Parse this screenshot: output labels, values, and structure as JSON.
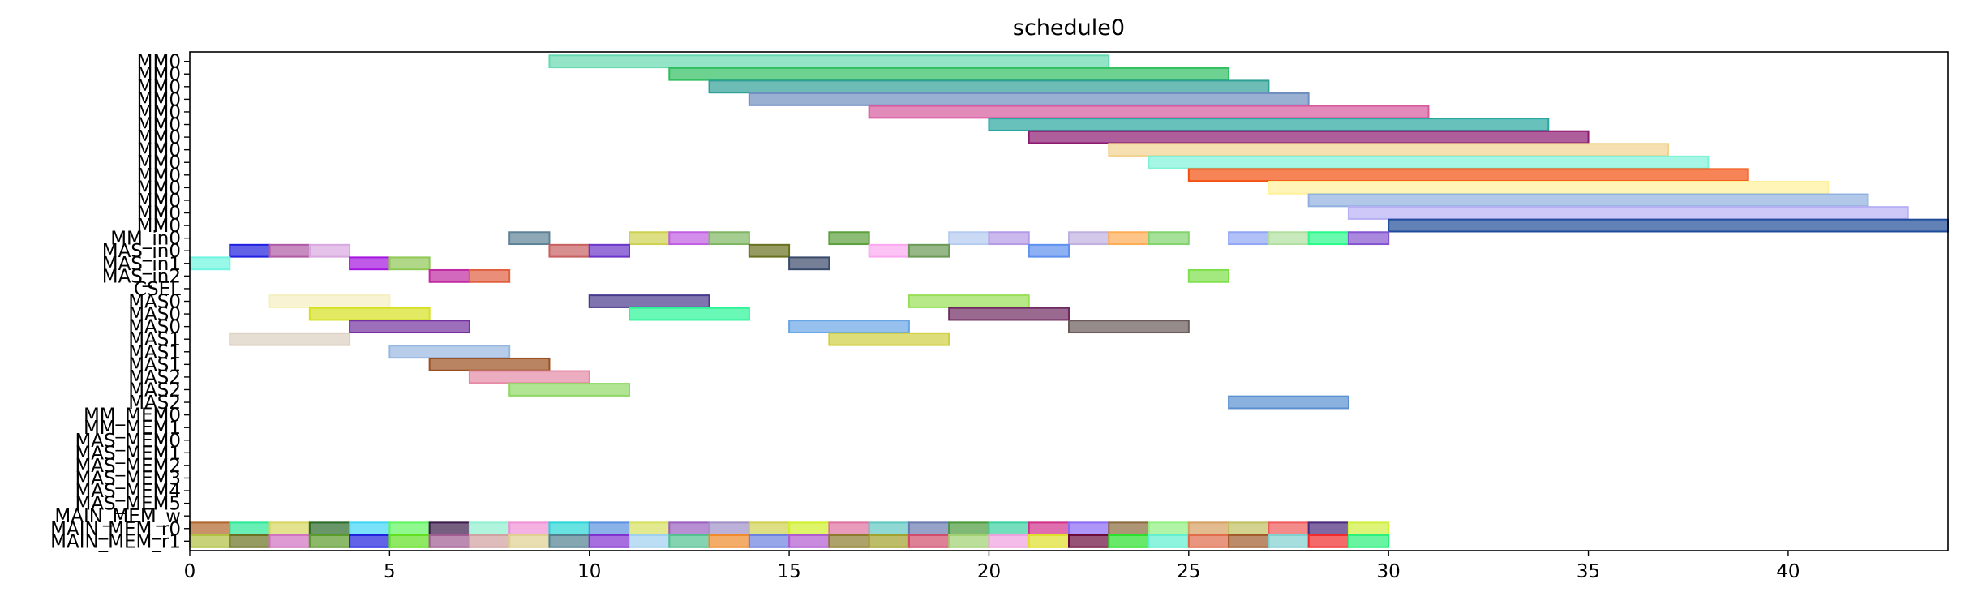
{
  "chart_data": {
    "type": "gantt",
    "title": "schedule0",
    "xlim": [
      0,
      44
    ],
    "x_ticks": [
      0,
      5,
      10,
      15,
      20,
      25,
      30,
      35,
      40
    ],
    "grid": false,
    "rows": [
      "MM0",
      "MM0",
      "MM0",
      "MM0",
      "MM0",
      "MM0",
      "MM0",
      "MM0",
      "MM0",
      "MM0",
      "MM0",
      "MM0",
      "MM0",
      "MM0",
      "MM_in0",
      "MAS_in0",
      "MAS_in1",
      "MAS_in2",
      "CSEL",
      "MAS0",
      "MAS0",
      "MAS0",
      "MAS1",
      "MAS1",
      "MAS1",
      "MAS2",
      "MAS2",
      "MAS2",
      "MM_MEM0",
      "MM_MEM1",
      "MAS_MEM0",
      "MAS_MEM1",
      "MAS_MEM2",
      "MAS_MEM3",
      "MAS_MEM4",
      "MAS_MEM5",
      "MAIN_MEM_w",
      "MAIN_MEM_r0",
      "MAIN_MEM_r1"
    ],
    "tasks": [
      {
        "row": 0,
        "start": 9,
        "end": 23,
        "color": "#66d9b0",
        "alpha": 0.7
      },
      {
        "row": 1,
        "start": 12,
        "end": 26,
        "color": "#2fbf5f",
        "alpha": 0.7
      },
      {
        "row": 2,
        "start": 13,
        "end": 27,
        "color": "#2f9f95",
        "alpha": 0.7
      },
      {
        "row": 3,
        "start": 14,
        "end": 28,
        "color": "#6e8fc0",
        "alpha": 0.7
      },
      {
        "row": 4,
        "start": 17,
        "end": 31,
        "color": "#d65a9e",
        "alpha": 0.7
      },
      {
        "row": 5,
        "start": 20,
        "end": 34,
        "color": "#2aa6a0",
        "alpha": 0.7
      },
      {
        "row": 6,
        "start": 21,
        "end": 35,
        "color": "#8c1a70",
        "alpha": 0.7
      },
      {
        "row": 7,
        "start": 23,
        "end": 37,
        "color": "#f2d28f",
        "alpha": 0.7
      },
      {
        "row": 8,
        "start": 24,
        "end": 38,
        "color": "#7ff2d8",
        "alpha": 0.7
      },
      {
        "row": 9,
        "start": 25,
        "end": 39,
        "color": "#f2500f",
        "alpha": 0.7
      },
      {
        "row": 10,
        "start": 27,
        "end": 41,
        "color": "#fff19a",
        "alpha": 0.7
      },
      {
        "row": 11,
        "start": 28,
        "end": 42,
        "color": "#90b0e0",
        "alpha": 0.7
      },
      {
        "row": 12,
        "start": 29,
        "end": 43,
        "color": "#b8b0f5",
        "alpha": 0.7
      },
      {
        "row": 13,
        "start": 30,
        "end": 44,
        "color": "#1f4c99",
        "alpha": 0.7
      },
      {
        "row": 14,
        "start": 8,
        "end": 9,
        "color": "#5f8396",
        "alpha": 0.7
      },
      {
        "row": 14,
        "start": 11,
        "end": 12,
        "color": "#cdd150",
        "alpha": 0.7
      },
      {
        "row": 14,
        "start": 12,
        "end": 13,
        "color": "#c15ee3",
        "alpha": 0.7
      },
      {
        "row": 14,
        "start": 13,
        "end": 14,
        "color": "#7fb663",
        "alpha": 0.7
      },
      {
        "row": 14,
        "start": 16,
        "end": 17,
        "color": "#5ba03c",
        "alpha": 0.7
      },
      {
        "row": 14,
        "start": 19,
        "end": 20,
        "color": "#b5cbf0",
        "alpha": 0.7
      },
      {
        "row": 14,
        "start": 20,
        "end": 21,
        "color": "#b59be6",
        "alpha": 0.7
      },
      {
        "row": 14,
        "start": 22,
        "end": 23,
        "color": "#c0b0e0",
        "alpha": 0.7
      },
      {
        "row": 14,
        "start": 23,
        "end": 24,
        "color": "#ffad55",
        "alpha": 0.7
      },
      {
        "row": 14,
        "start": 24,
        "end": 25,
        "color": "#82d36e",
        "alpha": 0.7
      },
      {
        "row": 14,
        "start": 26,
        "end": 27,
        "color": "#92a5f5",
        "alpha": 0.7
      },
      {
        "row": 14,
        "start": 27,
        "end": 28,
        "color": "#b0dfa0",
        "alpha": 0.7
      },
      {
        "row": 14,
        "start": 28,
        "end": 29,
        "color": "#2afa8a",
        "alpha": 0.7
      },
      {
        "row": 14,
        "start": 29,
        "end": 30,
        "color": "#8455d0",
        "alpha": 0.7
      },
      {
        "row": 15,
        "start": 1,
        "end": 2,
        "color": "#2020e0",
        "alpha": 0.7
      },
      {
        "row": 15,
        "start": 2,
        "end": 3,
        "color": "#b05aa5",
        "alpha": 0.7
      },
      {
        "row": 15,
        "start": 3,
        "end": 4,
        "color": "#d9a8e0",
        "alpha": 0.7
      },
      {
        "row": 15,
        "start": 9,
        "end": 10,
        "color": "#c86060",
        "alpha": 0.7
      },
      {
        "row": 15,
        "start": 10,
        "end": 11,
        "color": "#6a35c8",
        "alpha": 0.7
      },
      {
        "row": 15,
        "start": 14,
        "end": 15,
        "color": "#6a7020",
        "alpha": 0.7
      },
      {
        "row": 15,
        "start": 17,
        "end": 18,
        "color": "#fba8f0",
        "alpha": 0.7
      },
      {
        "row": 15,
        "start": 18,
        "end": 19,
        "color": "#6a9a55",
        "alpha": 0.7
      },
      {
        "row": 15,
        "start": 21,
        "end": 22,
        "color": "#5e90f0",
        "alpha": 0.7
      },
      {
        "row": 16,
        "start": 0,
        "end": 1,
        "color": "#6ff5e0",
        "alpha": 0.7
      },
      {
        "row": 16,
        "start": 4,
        "end": 5,
        "color": "#a515e0",
        "alpha": 0.7
      },
      {
        "row": 16,
        "start": 5,
        "end": 6,
        "color": "#90c855",
        "alpha": 0.7
      },
      {
        "row": 16,
        "start": 15,
        "end": 16,
        "color": "#3a4a6a",
        "alpha": 0.7
      },
      {
        "row": 17,
        "start": 6,
        "end": 7,
        "color": "#c02aa0",
        "alpha": 0.7
      },
      {
        "row": 17,
        "start": 7,
        "end": 8,
        "color": "#e06040",
        "alpha": 0.7
      },
      {
        "row": 17,
        "start": 25,
        "end": 26,
        "color": "#7ee04a",
        "alpha": 0.7
      },
      {
        "row": 19,
        "start": 2,
        "end": 5,
        "color": "#f5f0c0",
        "alpha": 0.7
      },
      {
        "row": 19,
        "start": 10,
        "end": 13,
        "color": "#4a3a8c",
        "alpha": 0.7
      },
      {
        "row": 19,
        "start": 18,
        "end": 21,
        "color": "#98df55",
        "alpha": 0.7
      },
      {
        "row": 20,
        "start": 3,
        "end": 6,
        "color": "#d5e020",
        "alpha": 0.7
      },
      {
        "row": 20,
        "start": 11,
        "end": 14,
        "color": "#2af595",
        "alpha": 0.7
      },
      {
        "row": 20,
        "start": 19,
        "end": 22,
        "color": "#6e2a60",
        "alpha": 0.7
      },
      {
        "row": 21,
        "start": 4,
        "end": 7,
        "color": "#7330a0",
        "alpha": 0.7
      },
      {
        "row": 21,
        "start": 15,
        "end": 18,
        "color": "#6aa5e5",
        "alpha": 0.7
      },
      {
        "row": 21,
        "start": 22,
        "end": 25,
        "color": "#6a5a5a",
        "alpha": 0.7
      },
      {
        "row": 22,
        "start": 1,
        "end": 4,
        "color": "#ddd0c0",
        "alpha": 0.7
      },
      {
        "row": 22,
        "start": 16,
        "end": 19,
        "color": "#cfcf40",
        "alpha": 0.7
      },
      {
        "row": 23,
        "start": 5,
        "end": 8,
        "color": "#98b8e0",
        "alpha": 0.7
      },
      {
        "row": 24,
        "start": 6,
        "end": 9,
        "color": "#9a5020",
        "alpha": 0.7
      },
      {
        "row": 25,
        "start": 7,
        "end": 10,
        "color": "#e58aa5",
        "alpha": 0.7
      },
      {
        "row": 26,
        "start": 8,
        "end": 11,
        "color": "#90d865",
        "alpha": 0.7
      },
      {
        "row": 27,
        "start": 26,
        "end": 29,
        "color": "#5a90d0",
        "alpha": 0.7
      },
      {
        "row": 37,
        "start": 0,
        "end": 1,
        "color": "#b0652a",
        "alpha": 0.7
      },
      {
        "row": 37,
        "start": 1,
        "end": 2,
        "color": "#2ae895",
        "alpha": 0.7
      },
      {
        "row": 37,
        "start": 2,
        "end": 3,
        "color": "#d5d560",
        "alpha": 0.7
      },
      {
        "row": 37,
        "start": 3,
        "end": 4,
        "color": "#2a6a2a",
        "alpha": 0.7
      },
      {
        "row": 37,
        "start": 4,
        "end": 5,
        "color": "#40d5f5",
        "alpha": 0.7
      },
      {
        "row": 37,
        "start": 5,
        "end": 6,
        "color": "#60f560",
        "alpha": 0.7
      },
      {
        "row": 37,
        "start": 6,
        "end": 7,
        "color": "#3a1a4a",
        "alpha": 0.7
      },
      {
        "row": 37,
        "start": 7,
        "end": 8,
        "color": "#90f0d0",
        "alpha": 0.7
      },
      {
        "row": 37,
        "start": 8,
        "end": 9,
        "color": "#f090d5",
        "alpha": 0.7
      },
      {
        "row": 37,
        "start": 9,
        "end": 10,
        "color": "#2ad5d5",
        "alpha": 0.7
      },
      {
        "row": 37,
        "start": 10,
        "end": 11,
        "color": "#5a90e0",
        "alpha": 0.7
      },
      {
        "row": 37,
        "start": 11,
        "end": 12,
        "color": "#d5e060",
        "alpha": 0.7
      },
      {
        "row": 37,
        "start": 12,
        "end": 13,
        "color": "#9a60c0",
        "alpha": 0.7
      },
      {
        "row": 37,
        "start": 13,
        "end": 14,
        "color": "#a090c8",
        "alpha": 0.7
      },
      {
        "row": 37,
        "start": 14,
        "end": 15,
        "color": "#d0d050",
        "alpha": 0.7
      },
      {
        "row": 37,
        "start": 15,
        "end": 16,
        "color": "#d0f02a",
        "alpha": 0.7
      },
      {
        "row": 37,
        "start": 16,
        "end": 17,
        "color": "#e070a0",
        "alpha": 0.7
      },
      {
        "row": 37,
        "start": 17,
        "end": 18,
        "color": "#60c8c0",
        "alpha": 0.7
      },
      {
        "row": 37,
        "start": 18,
        "end": 19,
        "color": "#6a7ab0",
        "alpha": 0.7
      },
      {
        "row": 37,
        "start": 19,
        "end": 20,
        "color": "#4a9a3a",
        "alpha": 0.7
      },
      {
        "row": 37,
        "start": 20,
        "end": 21,
        "color": "#3ad0a0",
        "alpha": 0.7
      },
      {
        "row": 37,
        "start": 21,
        "end": 22,
        "color": "#d0308a",
        "alpha": 0.7
      },
      {
        "row": 37,
        "start": 22,
        "end": 23,
        "color": "#8a6af5",
        "alpha": 0.7
      },
      {
        "row": 37,
        "start": 23,
        "end": 24,
        "color": "#8a6a3a",
        "alpha": 0.7
      },
      {
        "row": 37,
        "start": 24,
        "end": 25,
        "color": "#90f080",
        "alpha": 0.7
      },
      {
        "row": 37,
        "start": 25,
        "end": 26,
        "color": "#d5a060",
        "alpha": 0.7
      },
      {
        "row": 37,
        "start": 26,
        "end": 27,
        "color": "#c0c060",
        "alpha": 0.7
      },
      {
        "row": 37,
        "start": 27,
        "end": 28,
        "color": "#f05a5a",
        "alpha": 0.7
      },
      {
        "row": 37,
        "start": 28,
        "end": 29,
        "color": "#4a2a7a",
        "alpha": 0.7
      },
      {
        "row": 37,
        "start": 29,
        "end": 30,
        "color": "#d0f040",
        "alpha": 0.7
      },
      {
        "row": 38,
        "start": 0,
        "end": 1,
        "color": "#b0c040",
        "alpha": 0.7
      },
      {
        "row": 38,
        "start": 1,
        "end": 2,
        "color": "#6a7020",
        "alpha": 0.7
      },
      {
        "row": 38,
        "start": 2,
        "end": 3,
        "color": "#d070c0",
        "alpha": 0.7
      },
      {
        "row": 38,
        "start": 3,
        "end": 4,
        "color": "#5a9a2a",
        "alpha": 0.7
      },
      {
        "row": 38,
        "start": 4,
        "end": 5,
        "color": "#2020e0",
        "alpha": 0.7
      },
      {
        "row": 38,
        "start": 5,
        "end": 6,
        "color": "#60e020",
        "alpha": 0.7
      },
      {
        "row": 38,
        "start": 6,
        "end": 7,
        "color": "#a05a90",
        "alpha": 0.7
      },
      {
        "row": 38,
        "start": 7,
        "end": 8,
        "color": "#d0a0a0",
        "alpha": 0.7
      },
      {
        "row": 38,
        "start": 8,
        "end": 9,
        "color": "#e0d090",
        "alpha": 0.7
      },
      {
        "row": 38,
        "start": 9,
        "end": 10,
        "color": "#508090",
        "alpha": 0.7
      },
      {
        "row": 38,
        "start": 10,
        "end": 11,
        "color": "#8030d0",
        "alpha": 0.7
      },
      {
        "row": 38,
        "start": 11,
        "end": 12,
        "color": "#a0d0f0",
        "alpha": 0.7
      },
      {
        "row": 38,
        "start": 12,
        "end": 13,
        "color": "#50c090",
        "alpha": 0.7
      },
      {
        "row": 38,
        "start": 13,
        "end": 14,
        "color": "#f08a2a",
        "alpha": 0.7
      },
      {
        "row": 38,
        "start": 14,
        "end": 15,
        "color": "#6a80e0",
        "alpha": 0.7
      },
      {
        "row": 38,
        "start": 15,
        "end": 16,
        "color": "#b05ad0",
        "alpha": 0.7
      },
      {
        "row": 38,
        "start": 16,
        "end": 17,
        "color": "#8a7a2a",
        "alpha": 0.7
      },
      {
        "row": 38,
        "start": 17,
        "end": 18,
        "color": "#a0a02a",
        "alpha": 0.7
      },
      {
        "row": 38,
        "start": 18,
        "end": 19,
        "color": "#d04a6a",
        "alpha": 0.7
      },
      {
        "row": 38,
        "start": 19,
        "end": 20,
        "color": "#a0d070",
        "alpha": 0.7
      },
      {
        "row": 38,
        "start": 20,
        "end": 21,
        "color": "#f0a0e0",
        "alpha": 0.7
      },
      {
        "row": 38,
        "start": 21,
        "end": 22,
        "color": "#e0e02a",
        "alpha": 0.7
      },
      {
        "row": 38,
        "start": 22,
        "end": 23,
        "color": "#6a0a3a",
        "alpha": 0.7
      },
      {
        "row": 38,
        "start": 23,
        "end": 24,
        "color": "#2ae02a",
        "alpha": 0.7
      },
      {
        "row": 38,
        "start": 24,
        "end": 25,
        "color": "#60f0d0",
        "alpha": 0.7
      },
      {
        "row": 38,
        "start": 25,
        "end": 26,
        "color": "#e06a4a",
        "alpha": 0.7
      },
      {
        "row": 38,
        "start": 26,
        "end": 27,
        "color": "#a05a2a",
        "alpha": 0.7
      },
      {
        "row": 38,
        "start": 27,
        "end": 28,
        "color": "#80d0d0",
        "alpha": 0.7
      },
      {
        "row": 38,
        "start": 28,
        "end": 29,
        "color": "#f02a2a",
        "alpha": 0.7
      },
      {
        "row": 38,
        "start": 29,
        "end": 30,
        "color": "#2af07a",
        "alpha": 0.7
      }
    ]
  }
}
